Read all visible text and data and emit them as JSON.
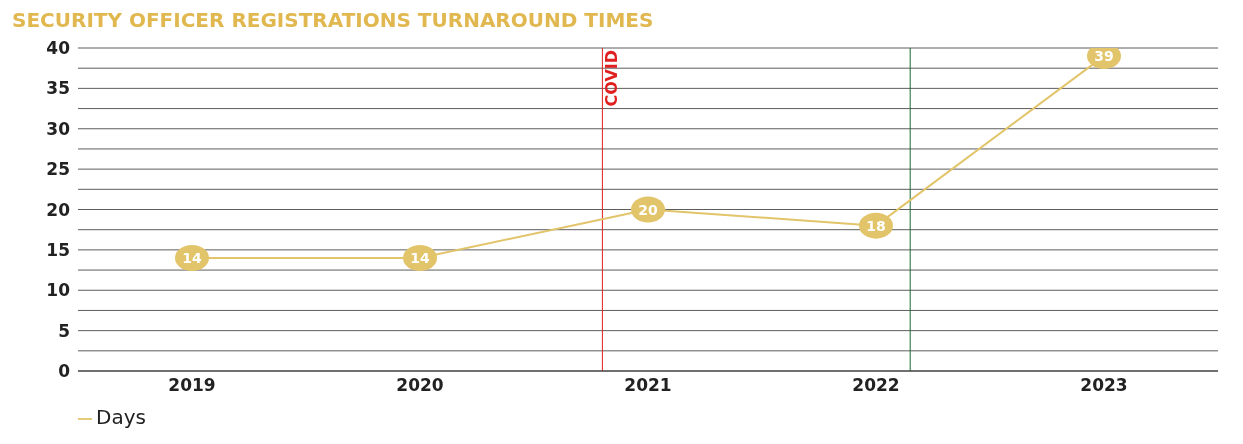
{
  "chart_data": {
    "type": "line",
    "title": "SECURITY OFFICER REGISTRATIONS TURNAROUND TIMES",
    "x": [
      2019,
      2020,
      2021,
      2022,
      2023
    ],
    "series": [
      {
        "name": "Days",
        "color": "#e2c46a",
        "values": [
          14,
          14,
          20,
          18,
          39
        ]
      }
    ],
    "xlim": [
      2018.5,
      2023.5
    ],
    "xticks": [
      2019,
      2020,
      2021,
      2022,
      2023
    ],
    "ylim": [
      0,
      40
    ],
    "yticks": [
      0,
      {
        "value": 2.5,
        "label": null
      },
      5,
      {
        "value": 7.5,
        "label": null
      },
      10,
      {
        "value": 12.5,
        "label": null
      },
      15,
      {
        "value": 17.5,
        "label": null
      },
      20,
      {
        "value": 22.5,
        "label": null
      },
      25,
      {
        "value": 27.5,
        "label": null
      },
      30,
      {
        "value": 32.5,
        "label": null
      },
      35,
      {
        "value": 37.5,
        "label": null
      },
      40
    ],
    "ref_lines": [
      {
        "axis": "x",
        "value": 2020.8,
        "label": "COVID",
        "color": "#e02020"
      },
      {
        "axis": "x",
        "value": 2022.15,
        "label": null,
        "color": "#1a6b2f"
      }
    ],
    "grid": "y",
    "legend": "bottom left",
    "marker": "circle",
    "line_style": "solid",
    "data_labels": true
  }
}
